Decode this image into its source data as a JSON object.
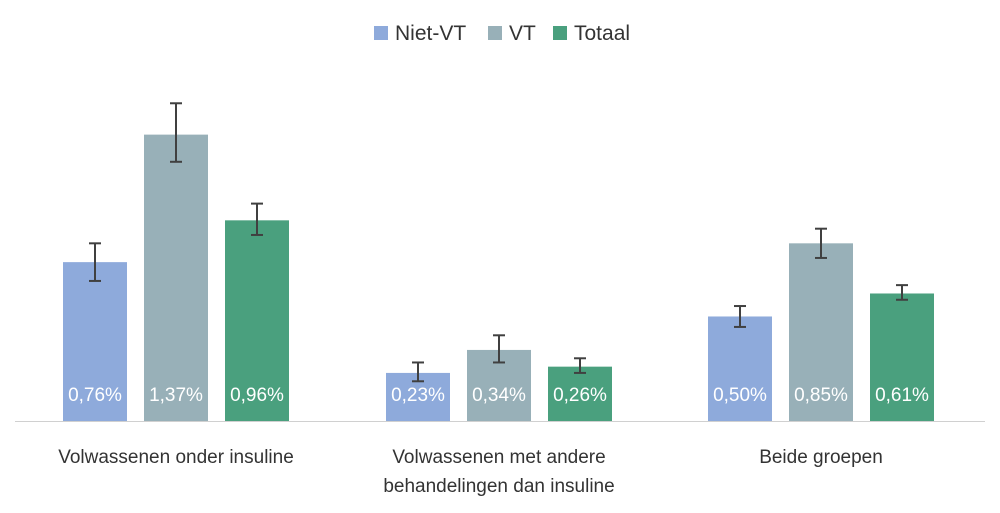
{
  "chart_data": {
    "type": "bar",
    "categories": [
      [
        "Volwassenen onder insuline"
      ],
      [
        "Volwassenen met andere",
        "behandelingen dan insuline"
      ],
      [
        "Beide groepen"
      ]
    ],
    "series": [
      {
        "name": "Niet-VT",
        "color": "#8eaadb",
        "values": [
          0.76,
          0.23,
          0.5
        ],
        "labels": [
          "0,76%",
          "0,23%",
          "0,50%"
        ],
        "error_low": [
          0.67,
          0.19,
          0.45
        ],
        "error_high": [
          0.85,
          0.28,
          0.55
        ]
      },
      {
        "name": "VT",
        "color": "#98b0b8",
        "values": [
          1.37,
          0.34,
          0.85
        ],
        "labels": [
          "1,37%",
          "0,34%",
          "0,85%"
        ],
        "error_low": [
          1.24,
          0.28,
          0.78
        ],
        "error_high": [
          1.52,
          0.41,
          0.92
        ]
      },
      {
        "name": "Totaal",
        "color": "#4aa07e",
        "values": [
          0.96,
          0.26,
          0.61
        ],
        "labels": [
          "0,96%",
          "0,26%",
          "0,61%"
        ],
        "error_low": [
          0.89,
          0.23,
          0.58
        ],
        "error_high": [
          1.04,
          0.3,
          0.65
        ]
      }
    ],
    "ylim": [
      0,
      1.55
    ],
    "legend_position": "top-center",
    "grid": false,
    "error_bar_color": "#404040",
    "axis_color": "#d0d0d0"
  }
}
